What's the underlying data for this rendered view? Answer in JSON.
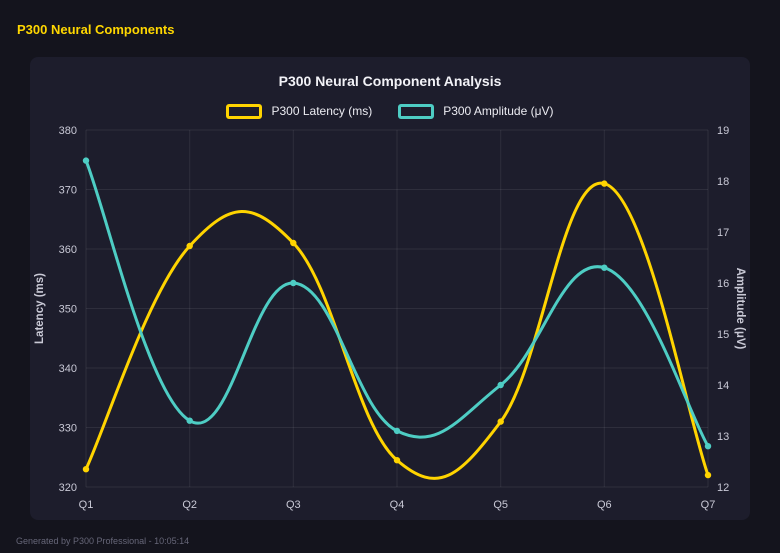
{
  "page": {
    "title": "P300 Neural Components",
    "footer": "Generated by P300 Professional - 10:05:14"
  },
  "chart_data": {
    "type": "line",
    "title": "P300 Neural Component Analysis",
    "categories": [
      "Q1",
      "Q2",
      "Q3",
      "Q4",
      "Q5",
      "Q6",
      "Q7"
    ],
    "series": [
      {
        "name": "P300 Latency (ms)",
        "axis": "left",
        "color": "#ffd400",
        "values": [
          323,
          360.5,
          361,
          324.5,
          331,
          371,
          322
        ]
      },
      {
        "name": "P300 Amplitude (μV)",
        "axis": "right",
        "color": "#4ecdc4",
        "values": [
          18.4,
          13.3,
          16.0,
          13.1,
          14.0,
          16.3,
          12.8
        ]
      }
    ],
    "y_left": {
      "label": "Latency (ms)",
      "min": 320,
      "max": 380,
      "step": 10
    },
    "y_right": {
      "label": "Amplitude (μV)",
      "min": 12,
      "max": 19,
      "step": 1
    },
    "grid": true,
    "legend_position": "top",
    "line_smoothing": true
  },
  "colors": {
    "background": "#14141d",
    "panel": "#1d1d2c",
    "grid": "rgba(255,255,255,0.08)",
    "tick": "#c9c9d6",
    "axis_title": "#e2e2ea",
    "title": "#f2f2f7",
    "accent_yellow": "#ffd400",
    "accent_teal": "#4ecdc4",
    "page_title": "#ffd700"
  }
}
